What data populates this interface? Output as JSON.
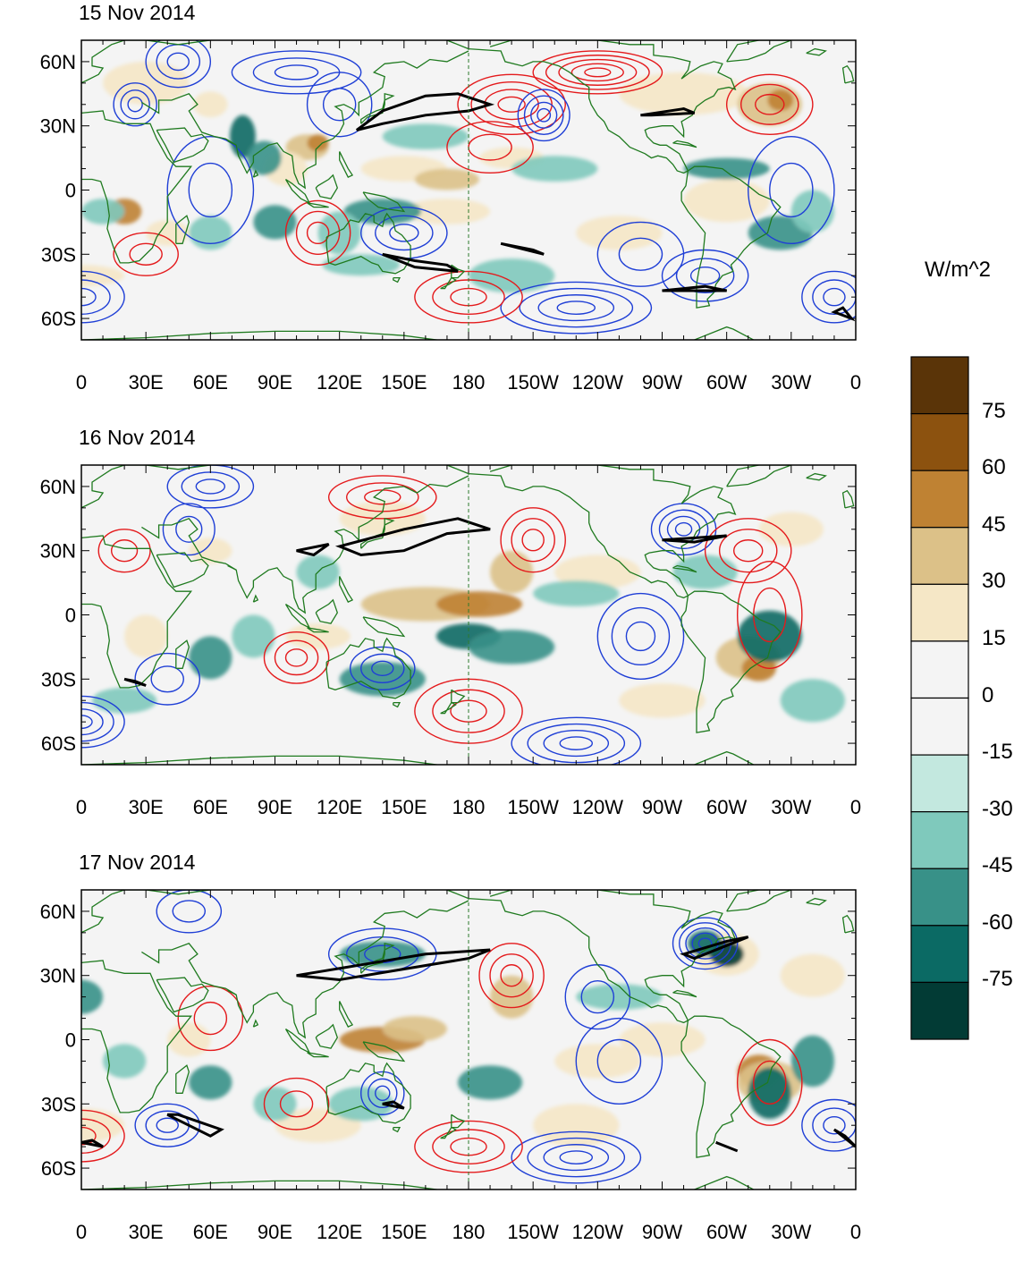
{
  "panels": [
    {
      "title": "15 Nov 2014"
    },
    {
      "title": "16 Nov 2014"
    },
    {
      "title": "17 Nov 2014"
    }
  ],
  "lat_labels": [
    "60N",
    "30N",
    "0",
    "30S",
    "60S"
  ],
  "lat_values": [
    60,
    30,
    0,
    -30,
    -60
  ],
  "lon_labels": [
    "0",
    "30E",
    "60E",
    "90E",
    "120E",
    "150E",
    "180",
    "150W",
    "120W",
    "90W",
    "60W",
    "30W",
    "0"
  ],
  "lon_values": [
    0,
    30,
    60,
    90,
    120,
    150,
    180,
    210,
    240,
    270,
    300,
    330,
    360
  ],
  "lat_range": [
    -70,
    70
  ],
  "lon_range": [
    0,
    360
  ],
  "colorbar": {
    "unit": "W/m^2",
    "labels": [
      "75",
      "60",
      "45",
      "30",
      "15",
      "0",
      "-15",
      "-30",
      "-45",
      "-60",
      "-75"
    ],
    "colors": [
      "#5a3408",
      "#8c520f",
      "#bf8233",
      "#dcc188",
      "#f5e7c6",
      "#f4f4f4",
      "#f4f4f4",
      "#c3e8df",
      "#7fc9bc",
      "#389188",
      "#0b6a64",
      "#023b35"
    ]
  },
  "colors": {
    "coast": "#1f7a1f",
    "positive_contour": "#e41a1c",
    "negative_contour": "#1f3fd6",
    "bold_contour": "#000000"
  },
  "chart_data": {
    "type": "heatmap",
    "series": [
      {
        "name": "shading",
        "unit": "W/m^2",
        "levels": [
          -75,
          -60,
          -45,
          -30,
          -15,
          0,
          15,
          30,
          45,
          60,
          75
        ]
      },
      {
        "name": "contours"
      }
    ]
  }
}
